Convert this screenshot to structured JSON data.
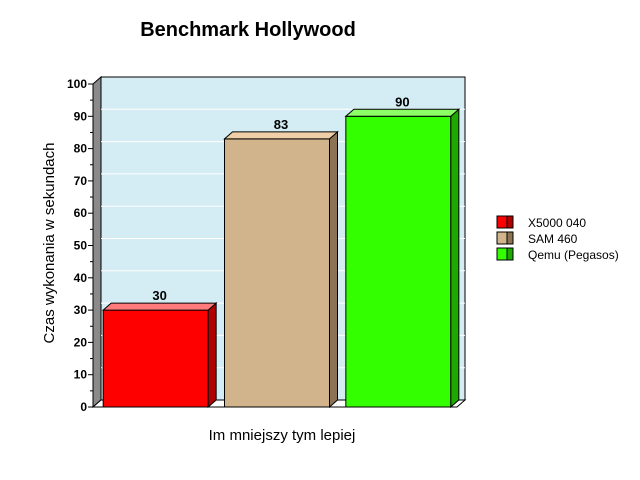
{
  "chart_data": {
    "type": "bar",
    "title": "Benchmark Hollywood",
    "xlabel": "Im mniejszy tym lepiej",
    "ylabel": "Czas wykonania w sekundach",
    "ylim": [
      0,
      100
    ],
    "yticks": [
      0,
      10,
      20,
      30,
      40,
      50,
      60,
      70,
      80,
      90,
      100
    ],
    "grid": true,
    "legend_position": "right",
    "series": [
      {
        "name": "X5000 040",
        "value": 30,
        "color": "#ff0000",
        "side": "#b00000",
        "top": "#ff7a7a"
      },
      {
        "name": "SAM 460",
        "value": 83,
        "color": "#d2b48c",
        "side": "#8c7355",
        "top": "#f0cfa8"
      },
      {
        "name": "Qemu (Pegasos)",
        "value": 90,
        "color": "#33ff00",
        "side": "#1fa800",
        "top": "#8cff66"
      }
    ]
  },
  "colors": {
    "plot_background": "#d4ecf4",
    "wall_side": "#8a8a8a",
    "grid": "#ffffff"
  }
}
